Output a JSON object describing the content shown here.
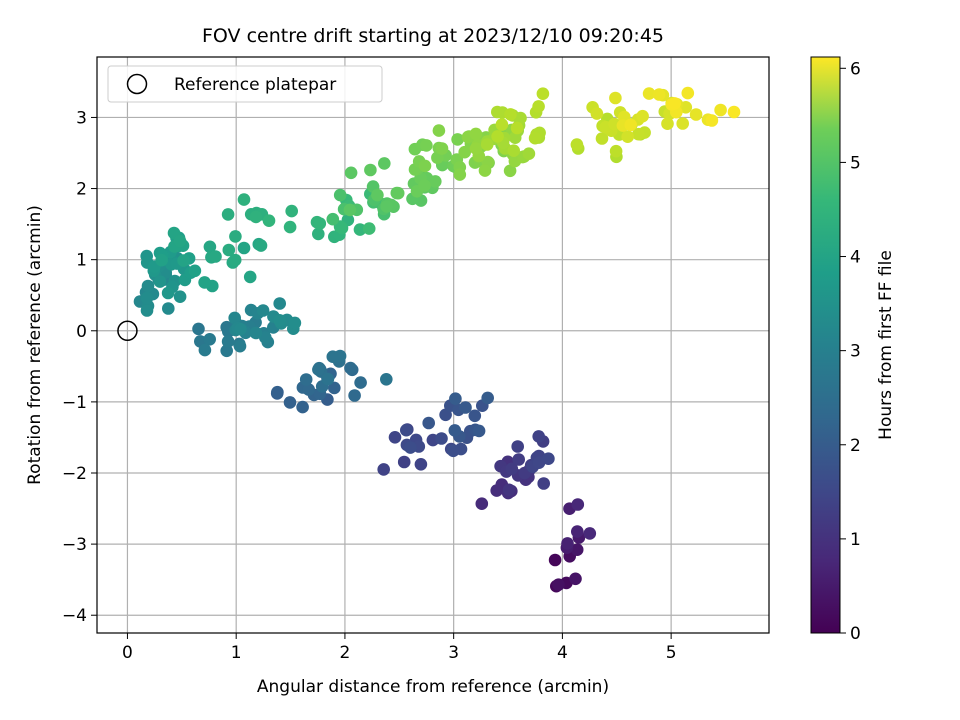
{
  "chart_data": {
    "type": "scatter",
    "title": "FOV centre drift starting at 2023/12/10 09:20:45",
    "xlabel": "Angular distance from reference (arcmin)",
    "ylabel": "Rotation from reference (arcmin)",
    "xlim": [
      -0.28,
      5.9
    ],
    "ylim": [
      -4.25,
      3.85
    ],
    "xticks": [
      0,
      1,
      2,
      3,
      4,
      5
    ],
    "yticks": [
      -4,
      -3,
      -2,
      -1,
      0,
      1,
      2,
      3
    ],
    "grid": true,
    "colormap": "viridis",
    "colorbar": {
      "label": "Hours from first FF file",
      "range": [
        0,
        6.12
      ],
      "ticks": [
        0,
        1,
        2,
        3,
        4,
        5,
        6
      ]
    },
    "legend": {
      "position": "top-left",
      "entries": [
        "Reference platepar"
      ]
    },
    "reference_point": {
      "x": 0,
      "y": 0,
      "label": "Reference platepar"
    },
    "clusters": [
      {
        "n": 14,
        "x": [
          3.88,
          4.3
        ],
        "y": [
          -3.85,
          -2.1
        ],
        "h": [
          0.05,
          0.75
        ]
      },
      {
        "n": 26,
        "x": [
          3.2,
          4.0
        ],
        "y": [
          -2.6,
          -1.3
        ],
        "h": [
          0.75,
          1.35
        ]
      },
      {
        "n": 30,
        "x": [
          2.3,
          3.5
        ],
        "y": [
          -2.0,
          -0.8
        ],
        "h": [
          1.2,
          1.8
        ]
      },
      {
        "n": 28,
        "x": [
          1.3,
          2.4
        ],
        "y": [
          -1.2,
          -0.2
        ],
        "h": [
          1.8,
          2.4
        ]
      },
      {
        "n": 35,
        "x": [
          0.6,
          1.6
        ],
        "y": [
          -0.4,
          0.5
        ],
        "h": [
          2.4,
          3.0
        ]
      },
      {
        "n": 45,
        "x": [
          0.0,
          0.7
        ],
        "y": [
          0.1,
          1.5
        ],
        "h": [
          2.8,
          3.6
        ]
      },
      {
        "n": 22,
        "x": [
          0.6,
          1.6
        ],
        "y": [
          0.6,
          2.0
        ],
        "h": [
          3.5,
          4.0
        ]
      },
      {
        "n": 30,
        "x": [
          1.6,
          2.6
        ],
        "y": [
          1.2,
          2.3
        ],
        "h": [
          3.9,
          4.6
        ]
      },
      {
        "n": 40,
        "x": [
          2.3,
          3.3
        ],
        "y": [
          1.7,
          2.9
        ],
        "h": [
          4.5,
          5.0
        ]
      },
      {
        "n": 50,
        "x": [
          3.0,
          3.9
        ],
        "y": [
          2.0,
          3.4
        ],
        "h": [
          4.9,
          5.5
        ]
      },
      {
        "n": 45,
        "x": [
          3.9,
          5.6
        ],
        "y": [
          2.4,
          3.5
        ],
        "h": [
          5.4,
          6.1
        ]
      }
    ]
  }
}
